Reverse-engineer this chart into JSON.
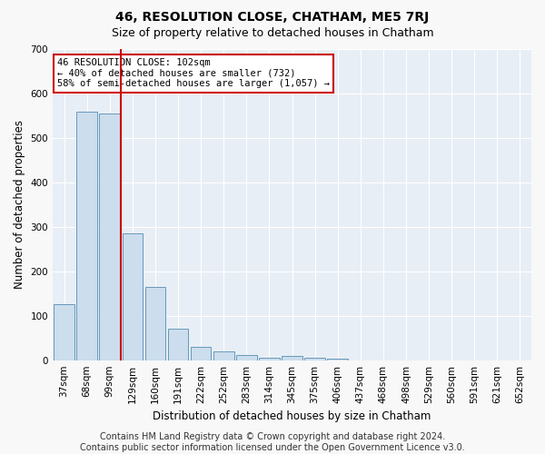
{
  "title": "46, RESOLUTION CLOSE, CHATHAM, ME5 7RJ",
  "subtitle": "Size of property relative to detached houses in Chatham",
  "xlabel": "Distribution of detached houses by size in Chatham",
  "ylabel": "Number of detached properties",
  "categories": [
    "37sqm",
    "68sqm",
    "99sqm",
    "129sqm",
    "160sqm",
    "191sqm",
    "222sqm",
    "252sqm",
    "283sqm",
    "314sqm",
    "345sqm",
    "375sqm",
    "406sqm",
    "437sqm",
    "468sqm",
    "498sqm",
    "529sqm",
    "560sqm",
    "591sqm",
    "621sqm",
    "652sqm"
  ],
  "values": [
    125,
    560,
    555,
    285,
    165,
    70,
    30,
    20,
    12,
    5,
    10,
    5,
    3,
    0,
    0,
    0,
    0,
    0,
    0,
    0,
    0
  ],
  "bar_color": "#ccdded",
  "bar_edge_color": "#6699bb",
  "vline_color": "#cc0000",
  "vline_x_index": 2,
  "annotation_line1": "46 RESOLUTION CLOSE: 102sqm",
  "annotation_line2": "← 40% of detached houses are smaller (732)",
  "annotation_line3": "58% of semi-detached houses are larger (1,057) →",
  "annotation_box_edge": "#cc0000",
  "ylim": [
    0,
    700
  ],
  "yticks": [
    0,
    100,
    200,
    300,
    400,
    500,
    600,
    700
  ],
  "footer_line1": "Contains HM Land Registry data © Crown copyright and database right 2024.",
  "footer_line2": "Contains public sector information licensed under the Open Government Licence v3.0.",
  "fig_bg_color": "#f8f8f8",
  "plot_bg_color": "#e8eef5",
  "title_fontsize": 10,
  "subtitle_fontsize": 9,
  "axis_label_fontsize": 8.5,
  "tick_fontsize": 7.5,
  "footer_fontsize": 7
}
